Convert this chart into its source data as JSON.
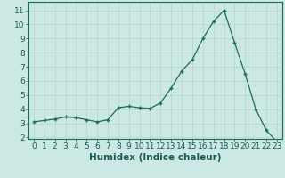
{
  "x": [
    0,
    1,
    2,
    3,
    4,
    5,
    6,
    7,
    8,
    9,
    10,
    11,
    12,
    13,
    14,
    15,
    16,
    17,
    18,
    19,
    20,
    21,
    22,
    23
  ],
  "y": [
    3.1,
    3.2,
    3.3,
    3.45,
    3.4,
    3.25,
    3.1,
    3.25,
    4.1,
    4.2,
    4.1,
    4.05,
    4.45,
    5.5,
    6.7,
    7.5,
    9.0,
    10.2,
    11.0,
    8.7,
    6.5,
    4.0,
    2.5,
    1.7
  ],
  "xlabel": "Humidex (Indice chaleur)",
  "xlim": [
    -0.5,
    23.5
  ],
  "ylim": [
    1.9,
    11.6
  ],
  "yticks": [
    2,
    3,
    4,
    5,
    6,
    7,
    8,
    9,
    10,
    11
  ],
  "xticks": [
    0,
    1,
    2,
    3,
    4,
    5,
    6,
    7,
    8,
    9,
    10,
    11,
    12,
    13,
    14,
    15,
    16,
    17,
    18,
    19,
    20,
    21,
    22,
    23
  ],
  "line_color": "#1a6b5a",
  "marker": "P",
  "marker_size": 2.0,
  "bg_color": "#cce8e4",
  "grid_color": "#b8d4d0",
  "axis_color": "#1a6b5a",
  "tick_label_color": "#1a5a50",
  "xlabel_fontsize": 7.5,
  "tick_fontsize": 6.5
}
